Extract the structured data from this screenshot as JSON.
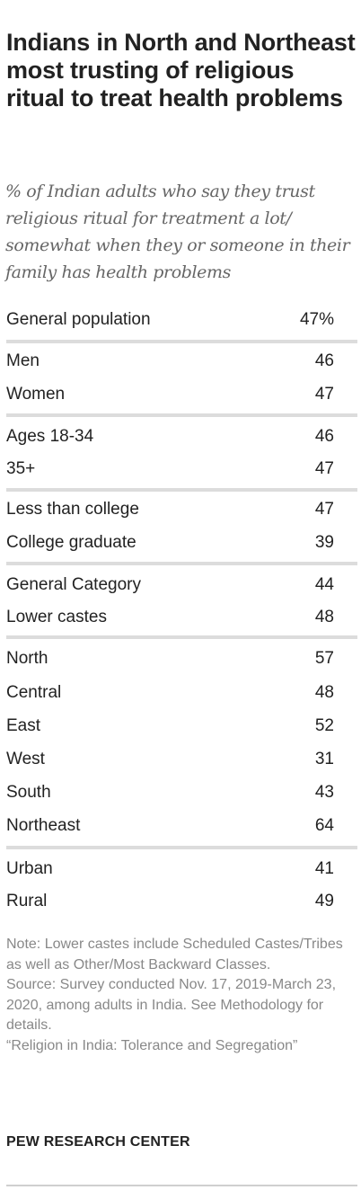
{
  "header": {
    "title": "Indians in North and Northeast most trusting of religious ritual to treat health problems",
    "subtitle": "% of Indian adults who say they trust religious ritual for treatment a lot/ somewhat when they or someone in their family has health problems"
  },
  "chart_data": {
    "type": "table",
    "rows": [
      {
        "label": "General population",
        "value": "47%"
      },
      {
        "label": "Men",
        "value": "46"
      },
      {
        "label": "Women",
        "value": "47"
      },
      {
        "label": "Ages 18-34",
        "value": "46"
      },
      {
        "label": "35+",
        "value": "47"
      },
      {
        "label": "Less than college",
        "value": "47"
      },
      {
        "label": "College graduate",
        "value": "39"
      },
      {
        "label": "General Category",
        "value": "44"
      },
      {
        "label": "Lower castes",
        "value": "48"
      },
      {
        "label": "North",
        "value": "57"
      },
      {
        "label": "Central",
        "value": "48"
      },
      {
        "label": "East",
        "value": "52"
      },
      {
        "label": "West",
        "value": "31"
      },
      {
        "label": "South",
        "value": "43"
      },
      {
        "label": "Northeast",
        "value": "64"
      },
      {
        "label": "Urban",
        "value": "41"
      },
      {
        "label": "Rural",
        "value": "49"
      }
    ]
  },
  "footer": {
    "note": "Note: Lower castes include Scheduled Castes/Tribes as well as Other/Most Backward Classes.",
    "source": "Source: Survey conducted Nov. 17, 2019-March 23, 2020, among adults in India. See Methodology for details.",
    "report": "“Religion in India: Tolerance and Segregation”",
    "brand": "PEW RESEARCH CENTER"
  }
}
